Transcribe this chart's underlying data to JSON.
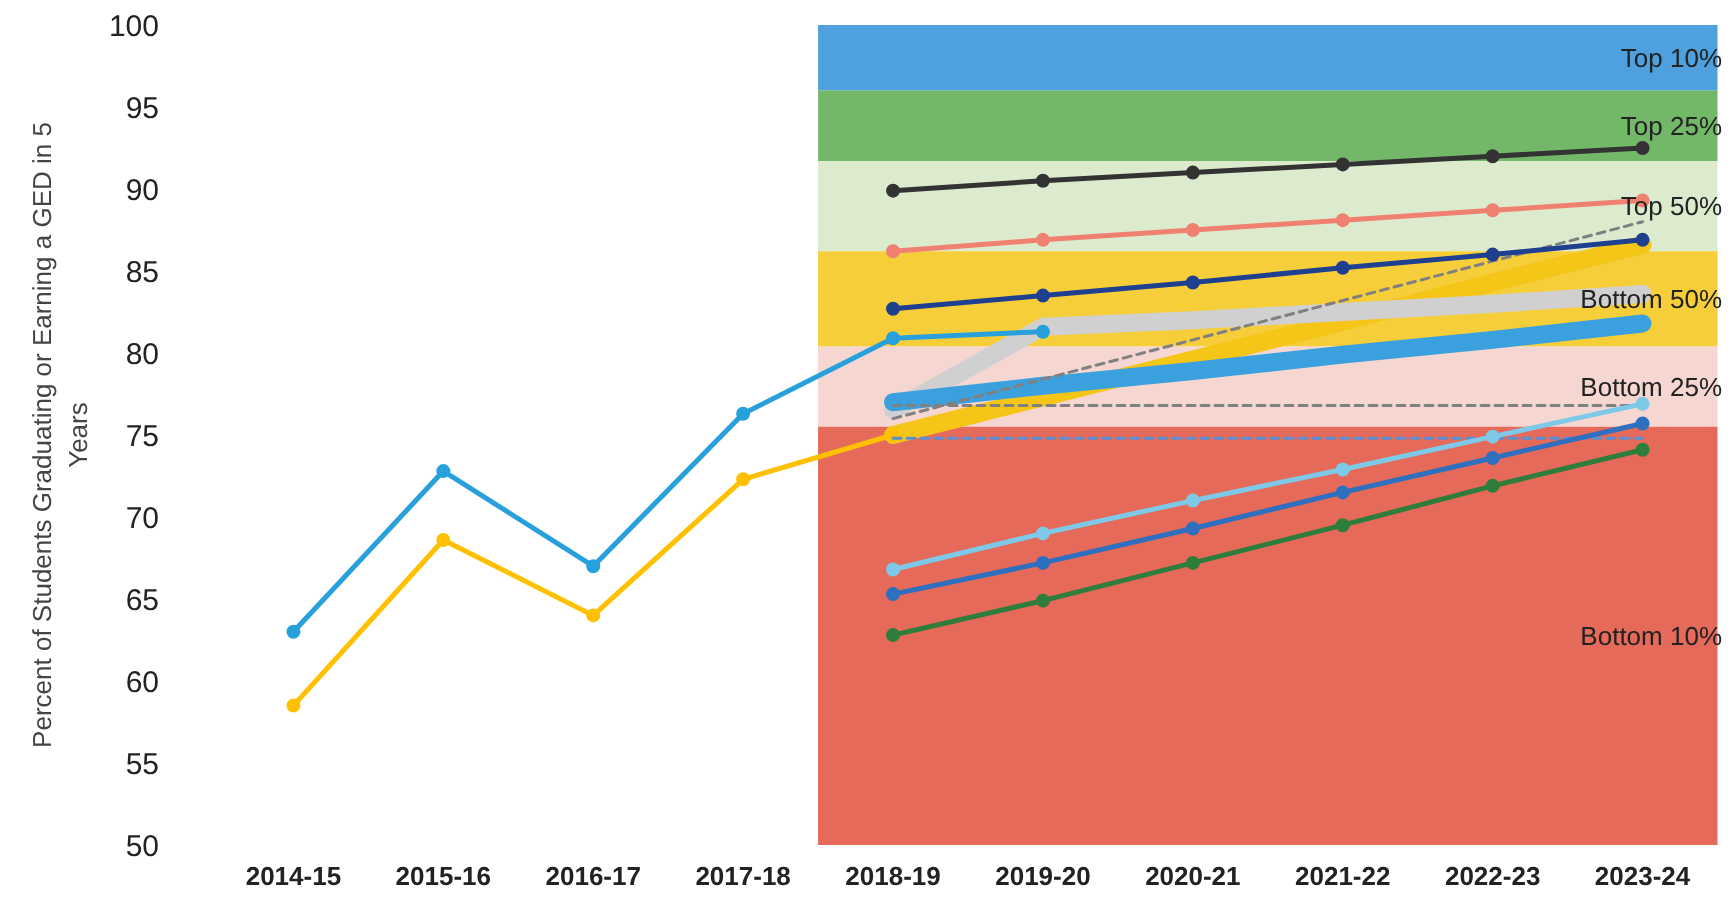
{
  "chart_data": {
    "type": "line",
    "ylabel": "Percent of Students Graduating or Earning a GED in 5 Years",
    "categories": [
      "2014-15",
      "2015-16",
      "2016-17",
      "2017-18",
      "2018-19",
      "2019-20",
      "2020-21",
      "2021-22",
      "2022-23",
      "2023-24"
    ],
    "ylim": [
      50,
      100
    ],
    "yticks": [
      50,
      55,
      60,
      65,
      70,
      75,
      80,
      85,
      90,
      95,
      100
    ],
    "grid": false,
    "marker": "circle",
    "line_style": "solid",
    "bands": [
      {
        "axis": "y",
        "from": 96.0,
        "to": 100,
        "label": "Top 10%",
        "color": "#2f8fd8"
      },
      {
        "axis": "y",
        "from": 91.7,
        "to": 96.0,
        "label": "Top 25%",
        "color": "#5aab4f"
      },
      {
        "axis": "y",
        "from": 86.2,
        "to": 91.7,
        "label": "Top 50%",
        "color": "#d6e8c4"
      },
      {
        "axis": "y",
        "from": 80.4,
        "to": 86.2,
        "label": "Bottom 50%",
        "color": "#f5c518"
      },
      {
        "axis": "y",
        "from": 75.5,
        "to": 80.4,
        "label": "Bottom 25%",
        "color": "#f4cfc8"
      },
      {
        "axis": "y",
        "from": 50,
        "to": 75.5,
        "label": "Bottom 10%",
        "color": "#e0503c"
      }
    ],
    "series": [
      {
        "color": "#f5c518",
        "marker": "none",
        "values": [
          null,
          null,
          null,
          null,
          75.0,
          77.3,
          79.6,
          81.9,
          84.3,
          86.6
        ]
      },
      {
        "color": "#d0d0d0",
        "marker": "none",
        "values": [
          null,
          null,
          null,
          null,
          76.5,
          81.6,
          82.0,
          82.5,
          83.0,
          83.6
        ]
      },
      {
        "color": "#3ba0de",
        "marker": "none",
        "values": [
          null,
          null,
          null,
          null,
          77.0,
          78.0,
          78.9,
          79.9,
          80.8,
          81.8
        ]
      },
      {
        "color": "#27a0db",
        "values": [
          63.0,
          72.8,
          67.0,
          76.3,
          80.9,
          81.3,
          null,
          null,
          null,
          null
        ]
      },
      {
        "color": "#ffc000",
        "values": [
          58.5,
          68.6,
          64.0,
          72.3,
          75.0,
          null,
          null,
          null,
          null,
          null
        ]
      },
      {
        "color": "#808080",
        "marker": "none",
        "line_style": "dashed",
        "values": [
          null,
          null,
          null,
          null,
          76.0,
          78.4,
          80.8,
          83.2,
          85.6,
          88.0
        ]
      },
      {
        "color": "#808080",
        "marker": "none",
        "line_style": "dashed",
        "values": [
          null,
          null,
          null,
          null,
          76.8,
          76.8,
          76.8,
          76.8,
          76.8,
          76.8
        ]
      },
      {
        "color": "#5b8fd0",
        "marker": "none",
        "line_style": "dashed",
        "values": [
          null,
          null,
          null,
          null,
          74.8,
          74.8,
          74.8,
          74.8,
          74.8,
          74.8
        ]
      },
      {
        "color": "#333333",
        "values": [
          null,
          null,
          null,
          null,
          89.9,
          90.5,
          91.0,
          91.5,
          92.0,
          92.5
        ]
      },
      {
        "color": "#f08070",
        "values": [
          null,
          null,
          null,
          null,
          86.2,
          86.9,
          87.5,
          88.1,
          88.7,
          89.3
        ]
      },
      {
        "color": "#1f3f8f",
        "values": [
          null,
          null,
          null,
          null,
          82.7,
          83.5,
          84.3,
          85.2,
          86.0,
          86.9
        ]
      },
      {
        "color": "#7ec8e8",
        "values": [
          null,
          null,
          null,
          null,
          66.8,
          69.0,
          71.0,
          72.9,
          74.9,
          76.9
        ]
      },
      {
        "color": "#2e6fbf",
        "values": [
          null,
          null,
          null,
          null,
          65.3,
          67.2,
          69.3,
          71.5,
          73.6,
          75.7
        ]
      },
      {
        "color": "#2e7d3a",
        "values": [
          null,
          null,
          null,
          null,
          62.8,
          64.9,
          67.2,
          69.5,
          71.9,
          74.1
        ]
      }
    ]
  }
}
